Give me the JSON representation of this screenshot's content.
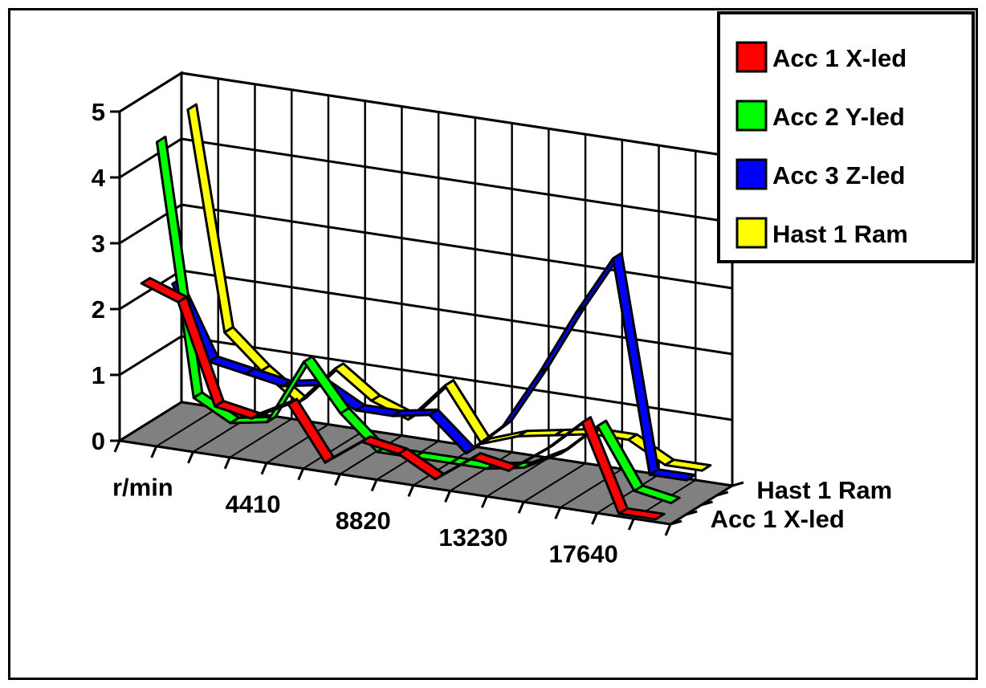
{
  "chart_data": {
    "type": "line",
    "variant": "3d-ribbon",
    "title": "",
    "xlabel": "",
    "ylabel": "",
    "x_tick_labels": [
      "r/min",
      "4410",
      "8820",
      "13230",
      "17640"
    ],
    "x_points": 15,
    "ylim": [
      0,
      5
    ],
    "y_ticks": [
      "0",
      "1",
      "2",
      "3",
      "4",
      "5"
    ],
    "depth_tick_labels": [
      "Acc 1  X-led",
      "Hast 1  Ram"
    ],
    "grid": true,
    "legend_position": "top-right",
    "series": [
      {
        "name": "Acc 1  X-led",
        "color": "#ff0000",
        "values": [
          2.4,
          2.2,
          0.7,
          0.6,
          0.9,
          0.1,
          0.5,
          0.4,
          0.1,
          0.5,
          0.4,
          0.8,
          1.3,
          0.0,
          0.0
        ]
      },
      {
        "name": "Acc 2  Y-led",
        "color": "#00ff00",
        "values": [
          4.4,
          0.6,
          0.3,
          0.4,
          1.4,
          0.7,
          0.2,
          0.2,
          0.2,
          0.2,
          0.3,
          0.6,
          1.1,
          0.2,
          0.1
        ]
      },
      {
        "name": "Acc 3  Z-led",
        "color": "#0000ff",
        "values": [
          2.1,
          1.0,
          0.9,
          0.8,
          0.9,
          0.6,
          0.6,
          0.7,
          0.2,
          0.7,
          1.6,
          2.6,
          3.5,
          0.3,
          0.3
        ]
      },
      {
        "name": "Hast 1  Ram",
        "color": "#ffff00",
        "values": [
          4.6,
          1.3,
          0.8,
          0.4,
          1.0,
          0.6,
          0.4,
          1.0,
          0.2,
          0.4,
          0.5,
          0.6,
          0.6,
          0.3,
          0.3
        ]
      }
    ]
  }
}
